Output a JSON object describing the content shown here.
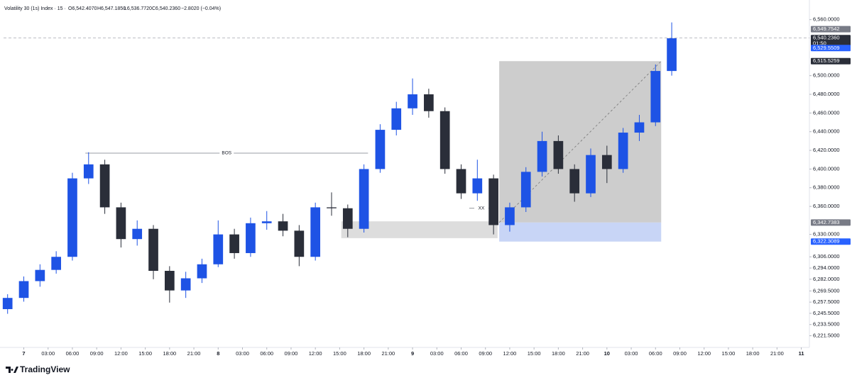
{
  "header": {
    "symbol": "Volatility 30 (1s) Index · 15 ·",
    "open": "O6,542.4070",
    "high": "H6,547.1850",
    "low": "L6,536.7720",
    "close": "C6,540.2360",
    "change": "−2.8020 (−0.04%)"
  },
  "footer": {
    "brand": "TradingView"
  },
  "chart_data": {
    "type": "candlestick",
    "up_color": "#1e53e5",
    "down_color": "#2a2e39",
    "xlim": [
      -2.5,
      97
    ],
    "ylim": [
      6209,
      6581
    ],
    "grid": false,
    "xticks": [
      {
        "value": 0,
        "label": "7"
      },
      {
        "value": 3,
        "label": "03:00"
      },
      {
        "value": 6,
        "label": "06:00"
      },
      {
        "value": 9,
        "label": "09:00"
      },
      {
        "value": 12,
        "label": "12:00"
      },
      {
        "value": 15,
        "label": "15:00"
      },
      {
        "value": 18,
        "label": "18:00"
      },
      {
        "value": 21,
        "label": "21:00"
      },
      {
        "value": 24,
        "label": "8"
      },
      {
        "value": 27,
        "label": "03:00"
      },
      {
        "value": 30,
        "label": "06:00"
      },
      {
        "value": 33,
        "label": "09:00"
      },
      {
        "value": 36,
        "label": "12:00"
      },
      {
        "value": 39,
        "label": "15:00"
      },
      {
        "value": 42,
        "label": "18:00"
      },
      {
        "value": 45,
        "label": "21:00"
      },
      {
        "value": 48,
        "label": "9"
      },
      {
        "value": 51,
        "label": "03:00"
      },
      {
        "value": 54,
        "label": "06:00"
      },
      {
        "value": 57,
        "label": "09:00"
      },
      {
        "value": 60,
        "label": "12:00"
      },
      {
        "value": 63,
        "label": "15:00"
      },
      {
        "value": 66,
        "label": "18:00"
      },
      {
        "value": 69,
        "label": "21:00"
      },
      {
        "value": 72,
        "label": "10"
      },
      {
        "value": 75,
        "label": "03:00"
      },
      {
        "value": 78,
        "label": "06:00"
      },
      {
        "value": 81,
        "label": "09:00"
      },
      {
        "value": 84,
        "label": "12:00"
      },
      {
        "value": 87,
        "label": "15:00"
      },
      {
        "value": 90,
        "label": "18:00"
      },
      {
        "value": 93,
        "label": "21:00"
      },
      {
        "value": 96,
        "label": "11"
      }
    ],
    "yticks": [
      {
        "value": 6560,
        "label": "6,560.0000"
      },
      {
        "value": 6500,
        "label": "6,500.0000"
      },
      {
        "value": 6480,
        "label": "6,480.0000"
      },
      {
        "value": 6460,
        "label": "6,460.0000"
      },
      {
        "value": 6440,
        "label": "6,440.0000"
      },
      {
        "value": 6420,
        "label": "6,420.0000"
      },
      {
        "value": 6400,
        "label": "6,400.0000"
      },
      {
        "value": 6380,
        "label": "6,380.0000"
      },
      {
        "value": 6360,
        "label": "6,360.0000"
      },
      {
        "value": 6330,
        "label": "6,330.0000"
      },
      {
        "value": 6306,
        "label": "6,306.0000"
      },
      {
        "value": 6294,
        "label": "6,294.0000"
      },
      {
        "value": 6282,
        "label": "6,282.0000"
      },
      {
        "value": 6269.5,
        "label": "6,269.5000"
      },
      {
        "value": 6257.5,
        "label": "6,257.5000"
      },
      {
        "value": 6245.5,
        "label": "6,245.5000"
      },
      {
        "value": 6233.5,
        "label": "6,233.5000"
      },
      {
        "value": 6221.5,
        "label": "6,221.5000"
      }
    ],
    "candles": {
      "x": [
        -2,
        0,
        2,
        4,
        6,
        8,
        10,
        12,
        14,
        16,
        18,
        20,
        22,
        24,
        26,
        28,
        30,
        32,
        34,
        36,
        38,
        40,
        42,
        44,
        46,
        48,
        50,
        52,
        54,
        56,
        58,
        60,
        62,
        64,
        66,
        68,
        70,
        72,
        74,
        76,
        78,
        80
      ],
      "open": [
        6250,
        6262,
        6280,
        6292,
        6306,
        6390,
        6405,
        6359,
        6325,
        6336,
        6291,
        6270,
        6283,
        6298,
        6330,
        6310,
        6342,
        6344,
        6334,
        6306,
        6359,
        6358,
        6336,
        6400,
        6442,
        6465,
        6480,
        6462,
        6400,
        6374,
        6390,
        6340,
        6359,
        6397,
        6430,
        6400,
        6374,
        6415,
        6400,
        6439,
        6450,
        6505
      ],
      "high": [
        6266,
        6285,
        6298,
        6312,
        6396,
        6418,
        6410,
        6364,
        6345,
        6340,
        6296,
        6290,
        6304,
        6345,
        6336,
        6348,
        6355,
        6352,
        6340,
        6364,
        6375,
        6362,
        6405,
        6448,
        6472,
        6497,
        6486,
        6466,
        6405,
        6410,
        6394,
        6364,
        6402,
        6440,
        6436,
        6405,
        6422,
        6425,
        6444,
        6458,
        6512,
        6557
      ],
      "low": [
        6245,
        6258,
        6274,
        6288,
        6302,
        6384,
        6352,
        6316,
        6318,
        6282,
        6257,
        6262,
        6278,
        6295,
        6304,
        6306,
        6335,
        6328,
        6296,
        6302,
        6350,
        6327,
        6332,
        6396,
        6436,
        6458,
        6455,
        6395,
        6368,
        6366,
        6330,
        6333,
        6354,
        6392,
        6395,
        6365,
        6370,
        6385,
        6396,
        6430,
        6446,
        6500
      ],
      "close": [
        6262,
        6280,
        6292,
        6306,
        6390,
        6405,
        6359,
        6325,
        6336,
        6291,
        6270,
        6283,
        6298,
        6330,
        6310,
        6342,
        6344,
        6334,
        6306,
        6359,
        6358,
        6336,
        6400,
        6442,
        6465,
        6480,
        6462,
        6400,
        6374,
        6390,
        6340,
        6359,
        6397,
        6430,
        6400,
        6374,
        6415,
        6400,
        6439,
        6450,
        6505,
        6540
      ]
    },
    "current_price": 6540.236,
    "annotations": [
      {
        "text": "BOS",
        "x": [
          7.6,
          42.5
        ],
        "y": 6417
      },
      {
        "text": "XX",
        "x": [
          55,
          58
        ],
        "y": 6358
      }
    ],
    "zones": [
      {
        "x": [
          39.2,
          58.5
        ],
        "y": [
          6326,
          6344
        ],
        "color": "#d9d9d9"
      }
    ],
    "position": {
      "x": [
        58.7,
        78.7
      ],
      "entry": 6342.7383,
      "target": 6515.5259,
      "stop": 6322.3089,
      "target_color": "#c8c8c8",
      "stop_color": "#c5d3f5"
    },
    "price_labels": [
      {
        "value": 6549.7542,
        "label": "6,549.7542",
        "color": "#787b86"
      },
      {
        "value": 6540.236,
        "label": "6,540.2360",
        "sublabel": "01:50",
        "color": "#2a2e39"
      },
      {
        "value": 6529.5509,
        "label": "6,529.5509",
        "color": "#2962ff"
      },
      {
        "value": 6515.5259,
        "label": "6,515.5259",
        "color": "#2a2e39"
      },
      {
        "value": 6342.7383,
        "label": "6,342.7383",
        "color": "#787b86"
      },
      {
        "value": 6322.3089,
        "label": "6,322.3089",
        "color": "#2962ff"
      }
    ]
  }
}
